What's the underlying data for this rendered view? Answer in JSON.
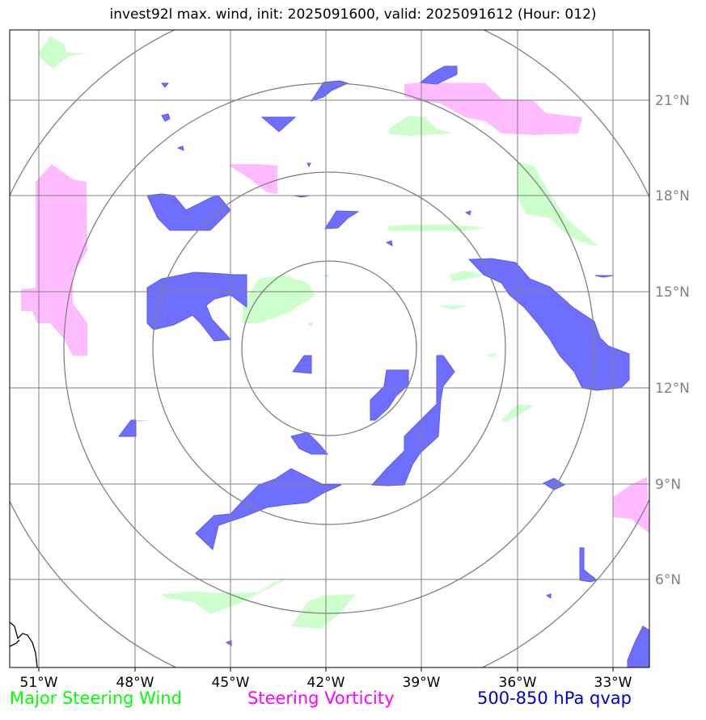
{
  "title": "invest92l max. wind, init: 2025091600, valid: 2025091612 (Hour: 012)",
  "lon_labels": [
    "51°W",
    "48°W",
    "45°W",
    "42°W",
    "39°W",
    "36°W",
    "33°W"
  ],
  "lat_labels": [
    "21°N",
    "18°N",
    "15°N",
    "12°N",
    "9°N",
    "6°N"
  ],
  "legend": {
    "wind": {
      "label": "Major Steering Wind",
      "color": "#00ff00"
    },
    "vorticity": {
      "label": "Steering Vorticity",
      "color": "#ff00ff"
    },
    "qvap": {
      "label": "500-850 hPa qvap",
      "color": "#0000cc"
    }
  },
  "colors": {
    "wind_fill": "#ccffcc",
    "vorticity_fill": "#ffbbff",
    "qvap_fill": "#6f6fff",
    "grid": "#808080"
  }
}
